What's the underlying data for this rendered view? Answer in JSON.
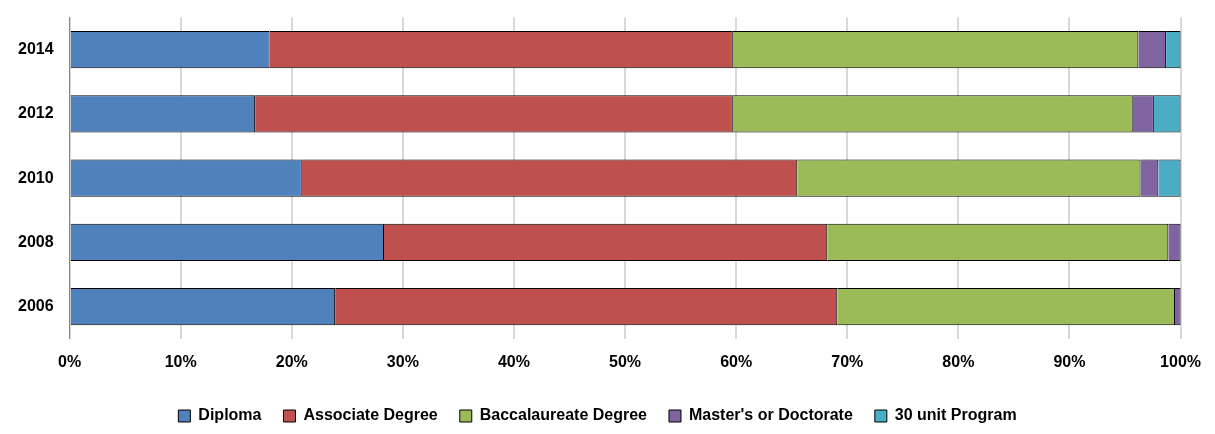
{
  "chart_data": {
    "type": "bar",
    "orientation": "horizontal",
    "stacked": true,
    "categories": [
      "2014",
      "2012",
      "2010",
      "2008",
      "2006"
    ],
    "series": [
      {
        "name": "Diploma",
        "color": "#4f81bd",
        "values": [
          18.0,
          16.7,
          20.9,
          28.3,
          23.9
        ]
      },
      {
        "name": "Associate Degree",
        "color": "#c0504d",
        "values": [
          41.7,
          43.0,
          44.6,
          39.9,
          45.2
        ]
      },
      {
        "name": "Baccalaureate Degree",
        "color": "#9bbb59",
        "values": [
          36.5,
          36.0,
          30.9,
          30.7,
          30.4
        ]
      },
      {
        "name": "Master's or Doctorate",
        "color": "#8064a2",
        "values": [
          2.5,
          1.9,
          1.6,
          1.1,
          0.5
        ]
      },
      {
        "name": "30 unit Program",
        "color": "#4bacc6",
        "values": [
          1.3,
          2.4,
          2.0,
          null,
          null
        ]
      }
    ],
    "xlim": [
      0,
      100
    ],
    "xticks": [
      {
        "value": 0,
        "label": "0%"
      },
      {
        "value": 10,
        "label": "10%"
      },
      {
        "value": 20,
        "label": "20%"
      },
      {
        "value": 30,
        "label": "30%"
      },
      {
        "value": 40,
        "label": "40%"
      },
      {
        "value": 50,
        "label": "50%"
      },
      {
        "value": 60,
        "label": "60%"
      },
      {
        "value": 70,
        "label": "70%"
      },
      {
        "value": 80,
        "label": "80%"
      },
      {
        "value": 90,
        "label": "90%"
      },
      {
        "value": 100,
        "label": "100%"
      }
    ],
    "grid": "x",
    "legend": "bottom"
  }
}
